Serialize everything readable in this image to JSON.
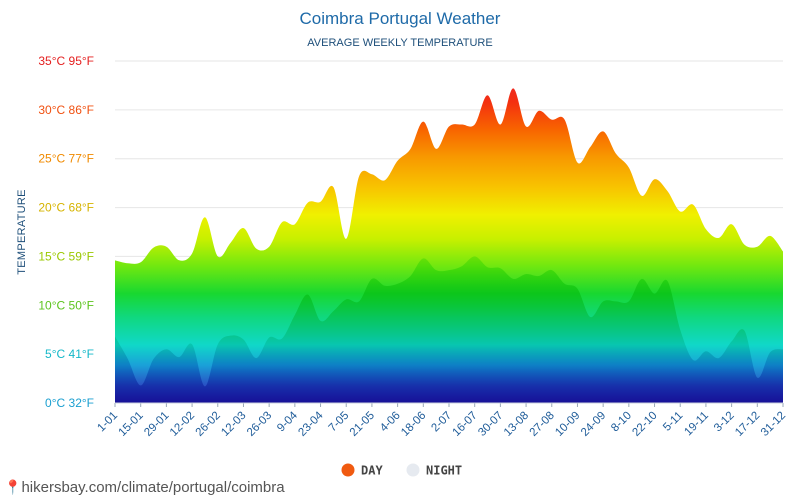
{
  "chart_data": {
    "type": "area",
    "title": "Coimbra Portugal Weather",
    "subtitle": "AVERAGE WEEKLY TEMPERATURE",
    "ylabel": "TEMPERATURE",
    "ylim": [
      0,
      35
    ],
    "y_ticks": [
      {
        "value": 0,
        "label": "0°C 32°F",
        "color": "#1a9fd0"
      },
      {
        "value": 5,
        "label": "5°C 41°F",
        "color": "#14b8c8"
      },
      {
        "value": 10,
        "label": "10°C 50°F",
        "color": "#5cc41e"
      },
      {
        "value": 15,
        "label": "15°C 59°F",
        "color": "#9ac800"
      },
      {
        "value": 20,
        "label": "20°C 68°F",
        "color": "#d6b400"
      },
      {
        "value": 25,
        "label": "25°C 77°F",
        "color": "#f08a00"
      },
      {
        "value": 30,
        "label": "30°C 86°F",
        "color": "#f05010"
      },
      {
        "value": 35,
        "label": "35°C 95°F",
        "color": "#e41e1e"
      }
    ],
    "x_tick_labels": [
      "1-01",
      "15-01",
      "29-01",
      "12-02",
      "26-02",
      "12-03",
      "26-03",
      "9-04",
      "23-04",
      "7-05",
      "21-05",
      "4-06",
      "18-06",
      "2-07",
      "16-07",
      "30-07",
      "13-08",
      "27-08",
      "10-09",
      "24-09",
      "8-10",
      "22-10",
      "5-11",
      "19-11",
      "3-12",
      "17-12",
      "31-12"
    ],
    "series": [
      {
        "name": "DAY",
        "legend_color": "#f05a10",
        "values": [
          14.6,
          14.3,
          14.4,
          15.9,
          16.0,
          14.6,
          15.3,
          19.0,
          15.0,
          16.4,
          17.9,
          15.8,
          16.0,
          18.5,
          18.3,
          20.5,
          20.6,
          22.1,
          16.8,
          23.2,
          23.4,
          22.8,
          24.8,
          26.0,
          28.8,
          26.0,
          28.3,
          28.5,
          28.5,
          31.5,
          28.5,
          32.2,
          28.3,
          29.9,
          29.0,
          29.0,
          24.6,
          26.2,
          27.8,
          25.5,
          24.1,
          21.2,
          22.9,
          21.7,
          19.6,
          20.3,
          17.8,
          16.9,
          18.3,
          16.2,
          16.0,
          17.1,
          15.5
        ]
      },
      {
        "name": "NIGHT",
        "legend_color": "#e6eaf0",
        "values": [
          6.8,
          4.5,
          1.8,
          4.5,
          5.5,
          4.7,
          6.0,
          1.7,
          6.0,
          6.9,
          6.5,
          4.6,
          6.7,
          6.6,
          9.0,
          11.1,
          8.4,
          9.4,
          10.6,
          10.4,
          12.7,
          12.0,
          12.2,
          13.0,
          14.8,
          13.6,
          13.6,
          14.0,
          15.0,
          13.9,
          13.8,
          12.7,
          13.2,
          13.0,
          13.6,
          12.2,
          11.7,
          8.8,
          10.4,
          10.4,
          10.4,
          12.7,
          11.2,
          12.5,
          7.5,
          4.4,
          5.3,
          4.6,
          6.3,
          7.4,
          2.6,
          5.2,
          5.5
        ]
      }
    ],
    "legend_position": "bottom-center",
    "grid": true
  },
  "source_text": "hikersbay.com/climate/portugal/coimbra"
}
